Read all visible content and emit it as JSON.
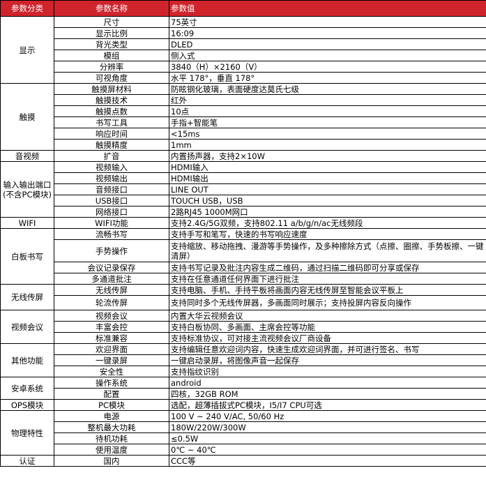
{
  "header": {
    "category": "参数分类",
    "name": "参数名称",
    "value": "参数值"
  },
  "accent_color": "#d0242c",
  "groups": [
    {
      "category": "显示",
      "rows": [
        {
          "name": "尺寸",
          "value": "75英寸"
        },
        {
          "name": "显示比例",
          "value": "16:09"
        },
        {
          "name": "背光类型",
          "value": "DLED"
        },
        {
          "name": "模组",
          "value": "侧入式"
        },
        {
          "name": "分辨率",
          "value": "3840（H）×2160（V）"
        },
        {
          "name": "可视角度",
          "value": "水平 178°，垂直 178°"
        }
      ]
    },
    {
      "category": "触摸",
      "rows": [
        {
          "name": "触摸屏材料",
          "value": "防眩钢化玻璃，表面硬度达莫氏七级"
        },
        {
          "name": "触摸技术",
          "value": "红外"
        },
        {
          "name": "触摸点数",
          "value": "10点"
        },
        {
          "name": "书写工具",
          "value": "手指+智能笔"
        },
        {
          "name": "响应时间",
          "value": "<15ms"
        },
        {
          "name": "触摸精度",
          "value": "1mm"
        }
      ]
    },
    {
      "category": "音视频",
      "rows": [
        {
          "name": "扩音",
          "value": "内置扬声器，支持2×10W"
        }
      ]
    },
    {
      "category": "输入输出端口(不含PC模块)",
      "rows": [
        {
          "name": "视频输入",
          "value": "HDMI输入"
        },
        {
          "name": "视频输出",
          "value": "HDMI输出"
        },
        {
          "name": "音频接口",
          "value": "LINE OUT"
        },
        {
          "name": "USB接口",
          "value": "TOUCH USB，USB"
        },
        {
          "name": "网络接口",
          "value": "2路RJ45 1000M网口"
        }
      ]
    },
    {
      "category": "WIFI",
      "rows": [
        {
          "name": "WIFI功能",
          "value": "支持2.4G/5G双频，支持802.11 a/b/g/n/ac无线频段"
        }
      ]
    },
    {
      "category": "白板书写",
      "rows": [
        {
          "name": "流畅书写",
          "value": "支持手写和笔写，快速的书写响应速度"
        },
        {
          "name": "手势操作",
          "value": "支持缩放、移动拖拽、漫游等手势操作，及多种擦除方式（点擦、圈擦、手势板擦、一键清屏）"
        },
        {
          "name": "会议记录保存",
          "value": "支持书写记录及批注内容生成二维码，通过扫描二维码即可分享或保存"
        },
        {
          "name": "多通道批注",
          "value": "支持在任意通道任何界面下进行批注"
        }
      ]
    },
    {
      "category": "无线传屏",
      "rows": [
        {
          "name": "无线传屏",
          "value": "支持电脑、手机、手持平板将画面内容无线传屏至智能会议平板上"
        },
        {
          "name": "轮流传屏",
          "value": "支持同时多个无线传屏器，多画面同时展示；支持投屏内容反向操作"
        }
      ]
    },
    {
      "category": "视频会议",
      "rows": [
        {
          "name": "视频会议",
          "value": "内置大华云视频会议"
        },
        {
          "name": "丰富会控",
          "value": "支持白板协同、多画面、主席会控等功能"
        },
        {
          "name": "标准兼容",
          "value": "支持标准协议，可对接主流视频会议厂商设备"
        }
      ]
    },
    {
      "category": "其他功能",
      "rows": [
        {
          "name": "欢迎界面",
          "value": "支持编辑任意欢迎词内容，快速生成欢迎词界面，并可进行签名、书写"
        },
        {
          "name": "一键录屏",
          "value": "一键启动录屏，将图像声音一起保存"
        },
        {
          "name": "安全性",
          "value": "支持指纹识别"
        }
      ]
    },
    {
      "category": "安卓系统",
      "rows": [
        {
          "name": "操作系统",
          "value": "android"
        },
        {
          "name": "配置",
          "value": "四核，32GB ROM"
        }
      ]
    },
    {
      "category": "OPS模块",
      "rows": [
        {
          "name": "PC模块",
          "value": "选配，超薄插拔式PC模块，I5/I7 CPU可选"
        }
      ]
    },
    {
      "category": "物理特性",
      "rows": [
        {
          "name": "电源",
          "value": "100 V ~ 240 V/AC, 50/60 Hz"
        },
        {
          "name": "整机最大功耗",
          "value": "180W/220W/300W"
        },
        {
          "name": "待机功耗",
          "value": "≤0.5W"
        },
        {
          "name": "使用温度",
          "value": "0℃ ~ 40℃"
        }
      ]
    },
    {
      "category": "认证",
      "rows": [
        {
          "name": "国内",
          "value": "CCC等"
        }
      ]
    }
  ]
}
